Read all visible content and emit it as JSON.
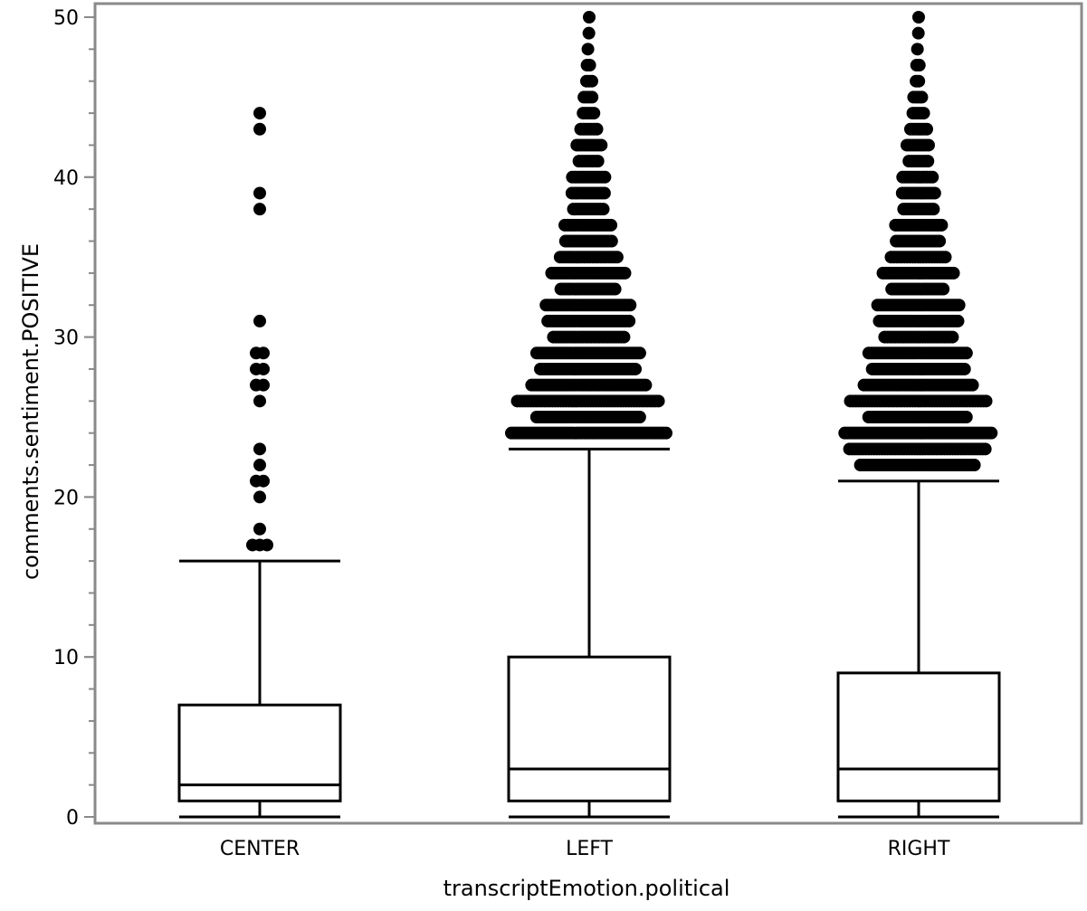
{
  "chart_data": {
    "type": "box",
    "xlabel": "transcriptEmotion.political",
    "ylabel": "comments.sentiment.POSITIVE",
    "ylim": [
      0,
      50
    ],
    "yticks": [
      0,
      10,
      20,
      30,
      40,
      50
    ],
    "yminor_step": 2,
    "grid": false,
    "categories": [
      "CENTER",
      "LEFT",
      "RIGHT"
    ],
    "boxes": [
      {
        "category": "CENTER",
        "min": 0,
        "q1": 1,
        "median": 2,
        "q3": 7,
        "whisker_high": 16,
        "outliers": [
          17,
          18,
          20,
          21,
          22,
          23,
          26,
          27,
          28,
          29,
          31,
          38,
          39,
          43,
          44
        ]
      },
      {
        "category": "LEFT",
        "min": 0,
        "q1": 1,
        "median": 3,
        "q3": 10,
        "whisker_high": 23,
        "outliers": [
          24,
          25,
          26,
          27,
          28,
          29,
          30,
          31,
          32,
          33,
          34,
          35,
          36,
          37,
          38,
          39,
          40,
          41,
          42,
          43,
          44,
          45,
          46,
          47,
          48,
          49,
          50
        ]
      },
      {
        "category": "RIGHT",
        "min": 0,
        "q1": 1,
        "median": 3,
        "q3": 9,
        "whisker_high": 21,
        "outliers": [
          22,
          23,
          24,
          25,
          26,
          27,
          28,
          29,
          30,
          31,
          32,
          33,
          34,
          35,
          36,
          37,
          38,
          39,
          40,
          41,
          42,
          43,
          44,
          45,
          46,
          47,
          48,
          49,
          50
        ]
      }
    ]
  }
}
